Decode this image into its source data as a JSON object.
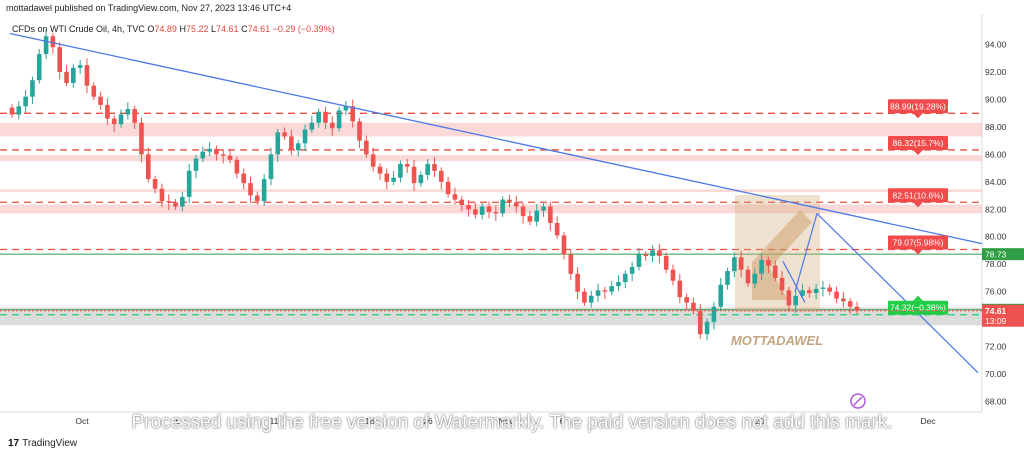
{
  "header": {
    "text": "mottadawel published on TradingView.com, Nov 27, 2023 13:46 UTC+4"
  },
  "legend": {
    "symbol": "CFDs on WTI Crude Oil, 4h, TVC",
    "o_label": "O",
    "o": "74.89",
    "h_label": "H",
    "h": "75.22",
    "l_label": "L",
    "l": "74.61",
    "c_label": "C",
    "c": "74.61",
    "change": "−0.29 (−0.39%)"
  },
  "chart_data": {
    "type": "candlestick",
    "y_ticks": [
      "94.00",
      "92.00",
      "90.00",
      "88.00",
      "86.00",
      "84.00",
      "82.00",
      "80.00",
      "78.00",
      "76.00",
      "74.00",
      "72.00",
      "70.00",
      "68.00"
    ],
    "ylim": [
      67.5,
      95.2
    ],
    "x_ticks": [
      "Oct",
      "6",
      "26",
      "Nov",
      "6",
      "20",
      "Dec"
    ],
    "hidden_x_ticks": [
      "11",
      "16"
    ],
    "current_price": 74.61,
    "current_price_label": "74.61",
    "countdown": "13:09",
    "horizontal_levels": [
      {
        "value": 78.73,
        "label": "78.73",
        "color": "#2f9e44"
      },
      {
        "value": 74.68,
        "label": "74.68",
        "color": "#2f9e44"
      }
    ],
    "target_labels": [
      {
        "value": 88.99,
        "label": "88.99(19.28%)"
      },
      {
        "value": 86.32,
        "label": "86.32(15.7%)"
      },
      {
        "value": 82.51,
        "label": "82.51(10.6%)"
      },
      {
        "value": 79.07,
        "label": "79.07(5.98%)"
      },
      {
        "value": 74.32,
        "label": "74.32(−0.38%)"
      }
    ],
    "resistance_zones": [
      [
        87.3,
        88.3
      ],
      [
        85.5,
        85.95
      ],
      [
        83.25,
        83.45
      ],
      [
        81.7,
        82.35
      ]
    ],
    "support_zone": [
      73.55,
      74.85
    ],
    "trendline": {
      "from": [
        0,
        94.8
      ],
      "to": [
        1,
        79.5
      ]
    },
    "price_path": [
      88.9,
      89.5,
      90.2,
      91.4,
      93.3,
      94.6,
      93.8,
      92.0,
      91.2,
      92.3,
      92.5,
      91.0,
      90.2,
      89.6,
      88.6,
      88.2,
      88.9,
      89.3,
      88.3,
      86.0,
      84.2,
      83.5,
      82.6,
      82.5,
      82.2,
      82.9,
      84.8,
      85.7,
      86.2,
      86.4,
      86.0,
      85.9,
      85.6,
      84.6,
      83.9,
      83.0,
      82.6,
      84.2,
      86.0,
      87.6,
      87.3,
      86.3,
      86.8,
      87.8,
      88.3,
      89.1,
      88.3,
      87.9,
      89.2,
      89.5,
      88.4,
      87.0,
      86.0,
      85.1,
      84.6,
      84.0,
      84.3,
      85.3,
      85.1,
      83.9,
      84.5,
      85.3,
      84.8,
      84.0,
      83.1,
      82.7,
      82.3,
      82.0,
      81.6,
      82.2,
      81.8,
      81.7,
      82.7,
      82.5,
      82.2,
      81.5,
      81.1,
      81.9,
      82.2,
      81.0,
      80.1,
      78.7,
      77.3,
      76.0,
      75.2,
      75.7,
      76.1,
      76.0,
      76.4,
      76.7,
      77.3,
      77.8,
      78.7,
      78.6,
      79.0,
      78.6,
      77.6,
      76.8,
      75.6,
      75.2,
      74.6,
      72.9,
      73.8,
      74.9,
      76.5,
      77.5,
      78.5,
      77.6,
      76.6,
      77.3,
      78.3,
      77.9,
      77.0,
      76.1,
      75.0,
      75.7,
      76.1,
      75.9,
      76.2,
      76.3,
      76.0,
      75.5,
      75.3,
      74.9,
      74.61
    ]
  },
  "watermark": {
    "badge": "MOTTADAWEL",
    "banner": "Processed using the free version of Watermarkly. The paid version does not add this mark."
  },
  "footer": {
    "logo": "17",
    "brand": "TradingView"
  }
}
